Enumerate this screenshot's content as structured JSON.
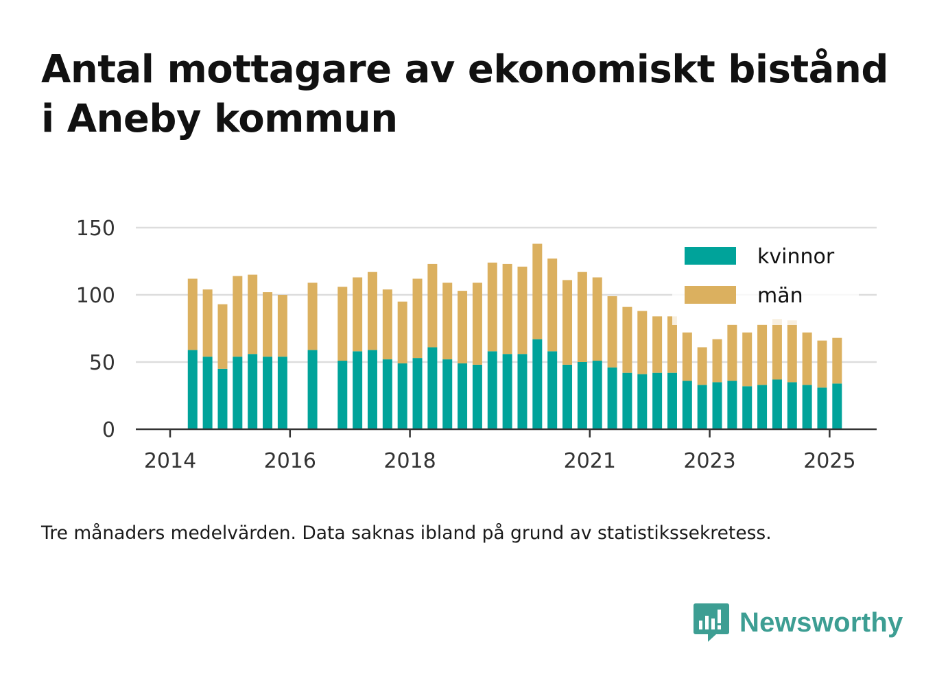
{
  "title_lines": [
    "Antal mottagare av ekonomiskt bistånd",
    "i Aneby kommun"
  ],
  "note": "Tre månaders medelvärden. Data saknas ibland på grund av statistikssekretess.",
  "brand": {
    "name": "Newsworthy",
    "icon": "bar-chart-speech-bubble-icon",
    "color": "#3d9e93"
  },
  "chart_data": {
    "type": "bar",
    "stacked": true,
    "title": "Antal mottagare av ekonomiskt bistånd i Aneby kommun",
    "xlabel": "",
    "ylabel": "",
    "ylim": [
      0,
      150
    ],
    "yticks": [
      0,
      50,
      100,
      150
    ],
    "xticks": [
      "2014",
      "2016",
      "2018",
      "2021",
      "2023",
      "2025"
    ],
    "grid": true,
    "legend": "top-right",
    "colors": {
      "kvinnor": "#00a39a",
      "män": "#dbb05f"
    },
    "x": [
      "2014-Q1",
      "2014-Q2",
      "2014-Q3",
      "2014-Q4",
      "2015-Q1",
      "2015-Q2",
      "2015-Q3",
      "2015-Q4",
      "2016-Q1",
      "2016-Q2",
      "2016-Q3",
      "2016-Q4",
      "2017-Q1",
      "2017-Q2",
      "2017-Q3",
      "2017-Q4",
      "2018-Q1",
      "2018-Q2",
      "2018-Q3",
      "2018-Q4",
      "2019-Q1",
      "2019-Q2",
      "2019-Q3",
      "2019-Q4",
      "2020-Q1",
      "2020-Q2",
      "2020-Q3",
      "2020-Q4",
      "2021-Q1",
      "2021-Q2",
      "2021-Q3",
      "2021-Q4",
      "2022-Q1",
      "2022-Q2",
      "2022-Q3",
      "2022-Q4",
      "2023-Q1",
      "2023-Q2",
      "2023-Q3",
      "2023-Q4",
      "2024-Q1",
      "2024-Q2",
      "2024-Q3",
      "2024-Q4",
      "2025-Q1"
    ],
    "series": [
      {
        "name": "kvinnor",
        "values": [
          null,
          59,
          54,
          45,
          54,
          56,
          54,
          54,
          null,
          59,
          null,
          51,
          58,
          59,
          52,
          49,
          53,
          61,
          52,
          49,
          48,
          58,
          56,
          56,
          67,
          58,
          48,
          50,
          51,
          46,
          42,
          41,
          42,
          42,
          36,
          33,
          35,
          36,
          32,
          33,
          37,
          35,
          33,
          31,
          34
        ]
      },
      {
        "name": "män",
        "values": [
          null,
          53,
          50,
          48,
          60,
          59,
          48,
          46,
          null,
          50,
          null,
          55,
          55,
          58,
          52,
          46,
          59,
          62,
          57,
          54,
          61,
          66,
          67,
          65,
          71,
          69,
          63,
          67,
          62,
          53,
          49,
          47,
          42,
          42,
          36,
          28,
          32,
          42,
          40,
          45,
          45,
          46,
          39,
          35,
          34
        ]
      }
    ]
  }
}
